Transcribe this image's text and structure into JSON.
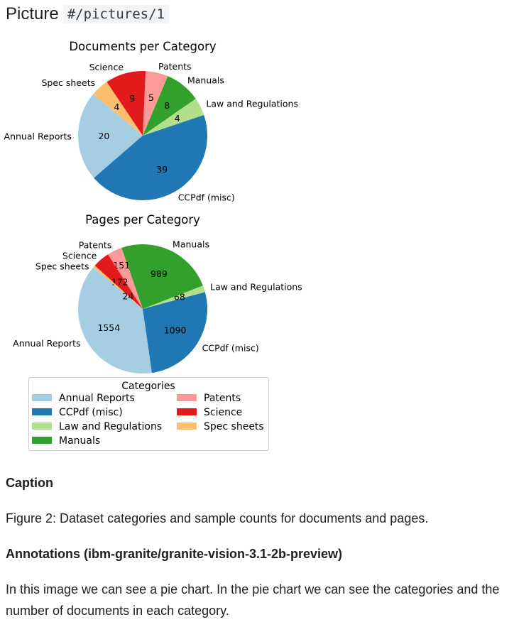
{
  "header": {
    "label": "Picture",
    "ref": "#/pictures/1"
  },
  "chart_data": [
    {
      "type": "pie",
      "title": "Documents per Category",
      "categories": [
        "Annual Reports",
        "CCPdf (misc)",
        "Law and Regulations",
        "Manuals",
        "Patents",
        "Science",
        "Spec sheets"
      ],
      "values": [
        20,
        39,
        4,
        8,
        5,
        9,
        4
      ],
      "start_angle": 140
    },
    {
      "type": "pie",
      "title": "Pages per Category",
      "categories": [
        "Annual Reports",
        "CCPdf (misc)",
        "Law and Regulations",
        "Manuals",
        "Patents",
        "Science",
        "Spec sheets"
      ],
      "values": [
        1554,
        1090,
        68,
        989,
        151,
        172,
        24
      ],
      "start_angle": 140
    }
  ],
  "legend": {
    "title": "Categories",
    "placement": "bottom",
    "items": [
      "Annual Reports",
      "CCPdf (misc)",
      "Law and Regulations",
      "Manuals",
      "Patents",
      "Science",
      "Spec sheets"
    ]
  },
  "colors": [
    "#a6cee3",
    "#1f78b4",
    "#b2df8a",
    "#33a02c",
    "#fb9a99",
    "#e31a1c",
    "#fdbf6f"
  ],
  "caption": {
    "heading": "Caption",
    "text": "Figure 2: Dataset categories and sample counts for documents and pages."
  },
  "annotations": {
    "heading": "Annotations (ibm-granite/granite-vision-3.1-2b-preview)",
    "text": "In this image we can see a pie chart. In the pie chart we can see the categories and the number of documents in each category."
  }
}
